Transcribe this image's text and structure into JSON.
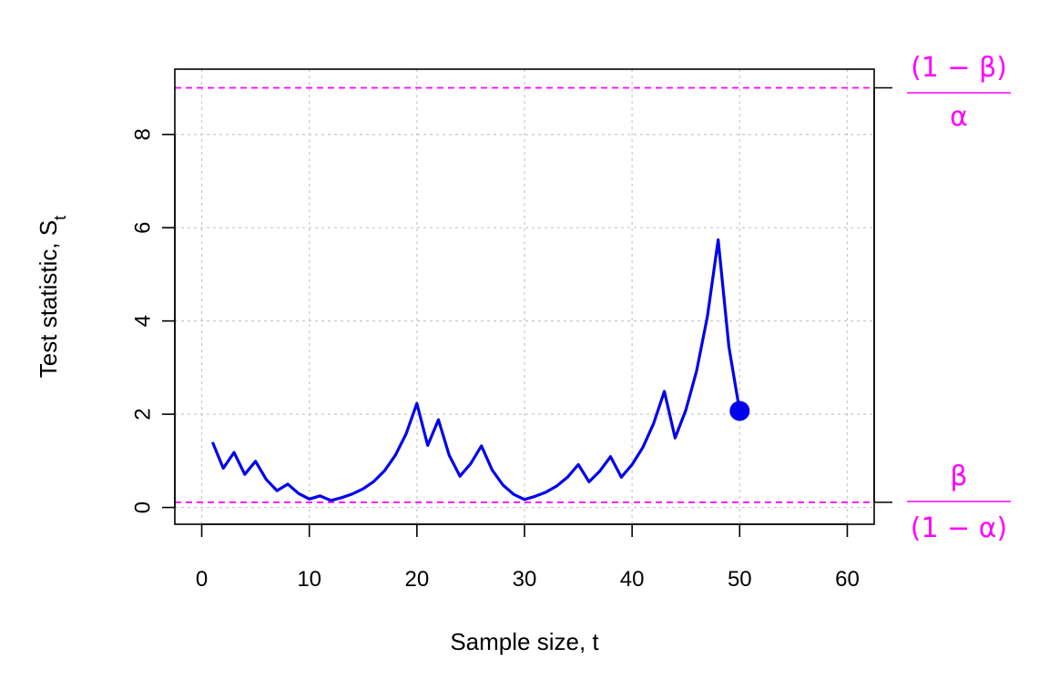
{
  "chart_data": {
    "type": "line",
    "title": "",
    "xlabel": "Sample size, t",
    "ylabel_main": "Test statistic, S",
    "ylabel_sub": "t",
    "xlim": [
      -2.5,
      62.5
    ],
    "ylim": [
      -0.36,
      9.4
    ],
    "x_ticks": [
      0,
      10,
      20,
      30,
      40,
      50,
      60
    ],
    "y_ticks": [
      0,
      2,
      4,
      6,
      8
    ],
    "grid": true,
    "legend": "none",
    "series": [
      {
        "color": "#0000ee",
        "x": [
          1,
          2,
          3,
          4,
          5,
          6,
          7,
          8,
          9,
          10,
          11,
          12,
          13,
          14,
          15,
          16,
          17,
          18,
          19,
          20,
          21,
          22,
          23,
          24,
          25,
          26,
          27,
          28,
          29,
          30,
          31,
          32,
          33,
          34,
          35,
          36,
          37,
          38,
          39,
          40,
          41,
          42,
          43,
          44,
          45,
          46,
          47,
          48,
          49,
          50
        ],
        "y": [
          1.4,
          0.84,
          1.18,
          0.71,
          0.99,
          0.6,
          0.36,
          0.5,
          0.3,
          0.18,
          0.25,
          0.15,
          0.21,
          0.29,
          0.4,
          0.56,
          0.79,
          1.12,
          1.58,
          2.23,
          1.33,
          1.88,
          1.12,
          0.67,
          0.94,
          1.32,
          0.8,
          0.48,
          0.28,
          0.17,
          0.24,
          0.33,
          0.46,
          0.65,
          0.92,
          0.55,
          0.78,
          1.09,
          0.65,
          0.92,
          1.29,
          1.8,
          2.49,
          1.49,
          2.09,
          2.93,
          4.1,
          5.74,
          3.44,
          2.07
        ]
      }
    ],
    "final_point": {
      "x": 50,
      "y": 2.07,
      "color": "#0000ee"
    },
    "boundaries": {
      "color": "#ff00ff",
      "upper": {
        "value": 9.0,
        "numerator": "(1 − β)",
        "denominator": "α"
      },
      "lower": {
        "value": 0.111,
        "numerator": "β",
        "denominator": "(1 − α)"
      }
    }
  }
}
